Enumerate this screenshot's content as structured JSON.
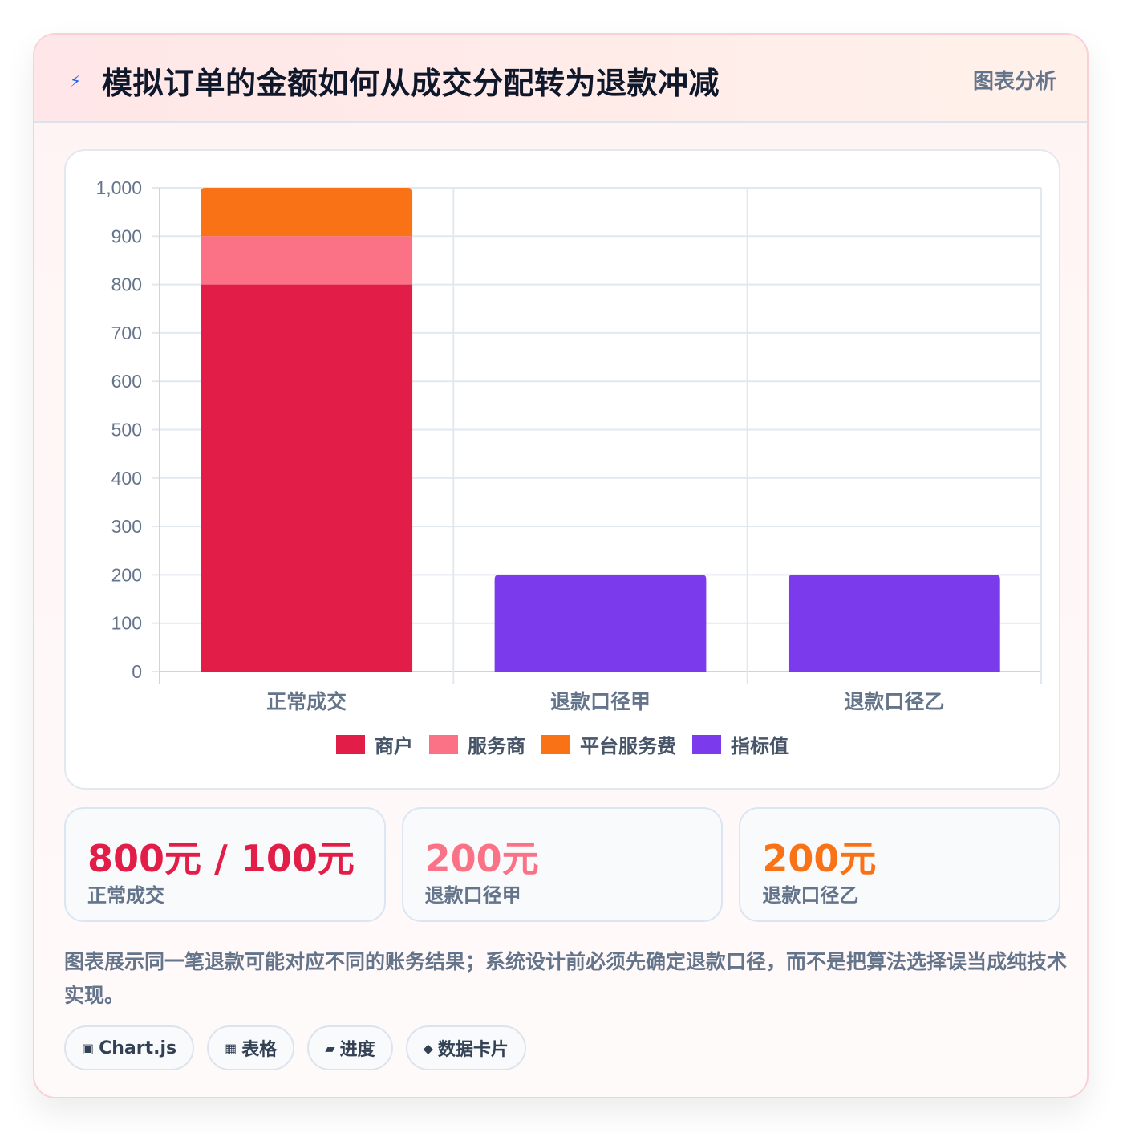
{
  "header": {
    "icon": "lightning-icon",
    "icon_glyph": "⚡",
    "title": "模拟订单的金额如何从成交分配转为退款冲减",
    "action_label": "图表分析"
  },
  "chart_data": {
    "type": "bar",
    "stacked": true,
    "categories": [
      "正常成交",
      "退款口径甲",
      "退款口径乙"
    ],
    "series": [
      {
        "name": "商户",
        "color": "#e11d48",
        "values": [
          800,
          0,
          0
        ]
      },
      {
        "name": "服务商",
        "color": "#fb7185",
        "values": [
          100,
          0,
          0
        ]
      },
      {
        "name": "平台服务费",
        "color": "#f97316",
        "values": [
          100,
          0,
          0
        ]
      },
      {
        "name": "指标值",
        "color": "#7c3aed",
        "values": [
          0,
          200,
          200
        ]
      }
    ],
    "ylim": [
      0,
      1000
    ],
    "yticks": [
      0,
      100,
      200,
      300,
      400,
      500,
      600,
      700,
      800,
      900,
      1000
    ],
    "ytick_labels": [
      "0",
      "100",
      "200",
      "300",
      "400",
      "500",
      "600",
      "700",
      "800",
      "900",
      "1,000"
    ],
    "grid": true,
    "legend": "bottom"
  },
  "stats": [
    {
      "value": "800元 / 100元",
      "label": "正常成交",
      "color": "#e11d48"
    },
    {
      "value": "200元",
      "label": "退款口径甲",
      "color": "#fb7185"
    },
    {
      "value": "200元",
      "label": "退款口径乙",
      "color": "#f97316"
    }
  ],
  "description": "图表展示同一笔退款可能对应不同的账务结果；系统设计前必须先确定退款口径，而不是把算法选择误当成纯技术实现。",
  "tags": [
    {
      "icon": "chip-icon",
      "glyph": "▣",
      "label": "Chart.js"
    },
    {
      "icon": "table-icon",
      "glyph": "▦",
      "label": "表格"
    },
    {
      "icon": "progress-icon",
      "glyph": "▰",
      "label": "进度"
    },
    {
      "icon": "diamond-icon",
      "glyph": "◆",
      "label": "数据卡片"
    }
  ]
}
